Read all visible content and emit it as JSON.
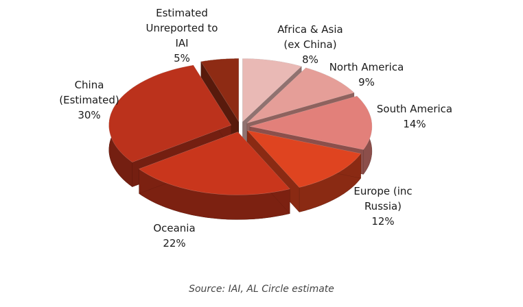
{
  "chart_data": {
    "type": "pie3d",
    "categories": [
      "Africa & Asia (ex China)",
      "North America",
      "South America",
      "Europe (inc Russia)",
      "Oceania",
      "China (Estimated)",
      "Estimated Unreported to IAI"
    ],
    "values": [
      8,
      9,
      14,
      12,
      22,
      30,
      5
    ],
    "value_labels": [
      "8%",
      "9%",
      "14%",
      "12%",
      "22%",
      "30%",
      "5%"
    ],
    "colors": [
      "#e9b9b5",
      "#e59e98",
      "#e2807a",
      "#df4420",
      "#c9361c",
      "#bb321c",
      "#8e2b14"
    ],
    "source": "Source: IAI, AL Circle estimate"
  }
}
